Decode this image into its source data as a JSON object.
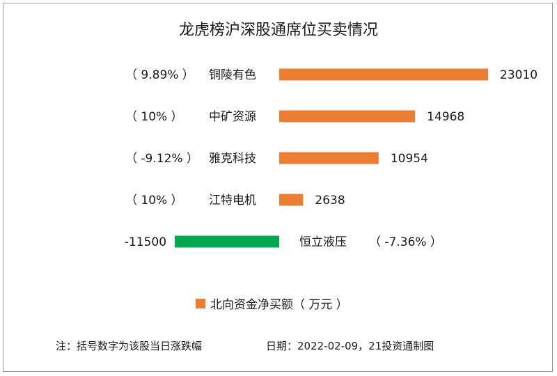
{
  "chart_data": {
    "type": "bar",
    "orientation": "horizontal",
    "title": "龙虎榜沪深股通席位买卖情况",
    "categories": [
      "铜陵有色",
      "中矿资源",
      "雅克科技",
      "江特电机",
      "恒立液压"
    ],
    "change_labels": [
      "（ 9.89% ）",
      "（ 10% ）",
      "（ -9.12% ）",
      "（ 10% ）",
      "（ -7.36% ）"
    ],
    "series": [
      {
        "name": "北向资金净买额（ 万元 ）",
        "values": [
          23010,
          14968,
          10954,
          2638,
          -11500
        ],
        "value_labels": [
          "23010",
          "14968",
          "10954",
          "2638",
          "-11500"
        ]
      }
    ],
    "legend_position": "bottom",
    "grid": false
  },
  "colors": {
    "positive": "#ED7D31",
    "negative": "#00A94F",
    "legend_swatch": "#ED7D31"
  },
  "footnote": {
    "note": "注：括号数字为该股当日涨跌幅",
    "date": "日期：2022-02-09，21投资通制图"
  }
}
